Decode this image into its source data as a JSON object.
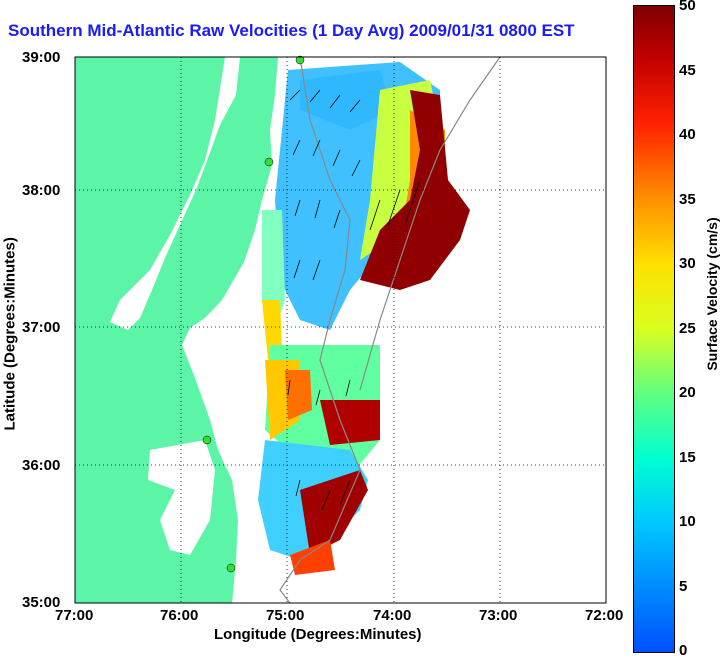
{
  "title": "Southern Mid-Atlantic Raw Velocities (1 Day Avg) 2009/01/31 0800 EST",
  "map": {
    "x_axis_label": "Longitude (Degrees:Minutes)",
    "y_axis_label": "Latitude (Degrees:Minutes)",
    "longitude_ticks": [
      "77:00",
      "76:00",
      "75:00",
      "74:00",
      "73:00",
      "72:00"
    ],
    "latitude_ticks": [
      "39:00",
      "38:00",
      "37:00",
      "36:00",
      "35:00"
    ],
    "lon_range": [
      -77,
      -72
    ],
    "lat_range": [
      35,
      39
    ],
    "grid": "dotted",
    "land_color": "#5cf5a8",
    "water_color": "#ffffff",
    "station_color": "#33dd33"
  },
  "colorbar": {
    "label": "Surface Velocity (cm/s)",
    "ticks": [
      "0",
      "5",
      "10",
      "15",
      "20",
      "25",
      "30",
      "35",
      "40",
      "45",
      "50"
    ],
    "range": [
      0,
      50
    ]
  }
}
